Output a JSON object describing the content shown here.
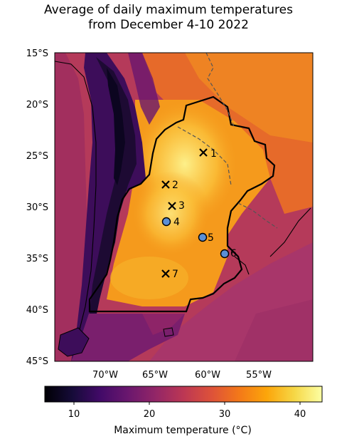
{
  "title": {
    "line1": "Average of daily maximum temperatures",
    "line2": "from December 4-10 2022"
  },
  "map": {
    "lat_ticks": [
      "15°S",
      "20°S",
      "25°S",
      "30°S",
      "35°S",
      "40°S",
      "45°S"
    ],
    "lon_ticks": [
      "70°W",
      "65°W",
      "60°W",
      "55°W"
    ]
  },
  "markers": [
    {
      "id": "1",
      "label": "1",
      "symbol": "x"
    },
    {
      "id": "2",
      "label": "2",
      "symbol": "x"
    },
    {
      "id": "3",
      "label": "3",
      "symbol": "x"
    },
    {
      "id": "4",
      "label": "4",
      "symbol": "circle"
    },
    {
      "id": "5",
      "label": "5",
      "symbol": "circle"
    },
    {
      "id": "6",
      "label": "6",
      "symbol": "circle"
    },
    {
      "id": "7",
      "label": "7",
      "symbol": "x"
    }
  ],
  "colorbar": {
    "label": "Maximum temperature (°C)",
    "ticks": [
      "10",
      "20",
      "30",
      "40"
    ],
    "colormap": "inferno"
  }
}
